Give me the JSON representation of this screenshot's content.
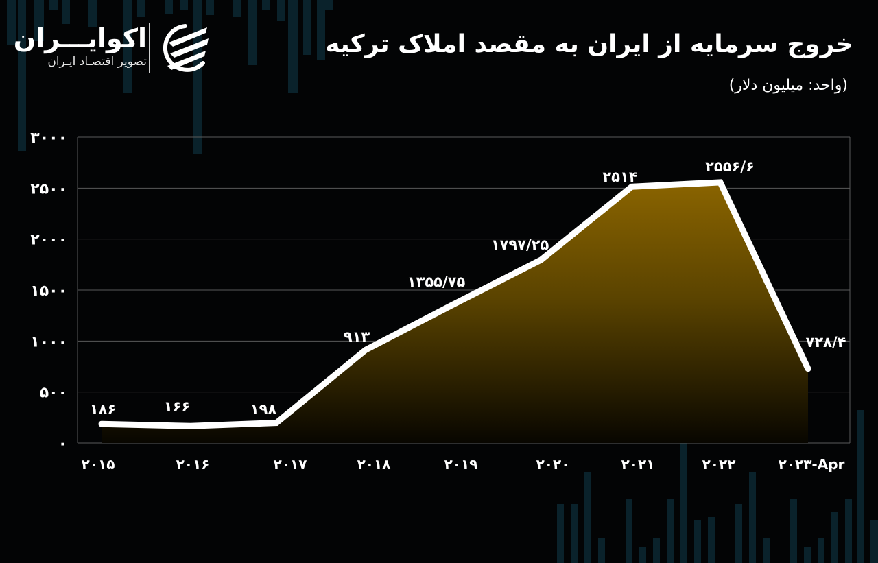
{
  "header": {
    "title": "خروج سرمایه از ایران به مقصد املاک ترکیه",
    "subtitle": "(واحد: میلیون دلار)"
  },
  "brand": {
    "name": "اکوایـــران",
    "tagline": "تصویر اقتصـاد ایـران",
    "icon": "ecoiran-logo-icon"
  },
  "colors": {
    "background": "#030405",
    "line": "#ffffff",
    "fill_top": "#8a6400",
    "fill_bottom": "#0a0800",
    "grid": "#5a5a5a",
    "decor_bars": "#0b2630"
  },
  "chart_data": {
    "type": "area",
    "title": "خروج سرمایه از ایران به مقصد املاک ترکیه",
    "subtitle": "(واحد: میلیون دلار)",
    "xlabel": "",
    "ylabel": "",
    "categories": [
      "2015",
      "2016",
      "2017",
      "2018",
      "2019",
      "2020",
      "2021",
      "2022",
      "2023-Apr"
    ],
    "category_labels": [
      "۲۰۱۵",
      "۲۰۱۶",
      "۲۰۱۷",
      "۲۰۱۸",
      "۲۰۱۹",
      "۲۰۲۰",
      "۲۰۲۱",
      "۲۰۲۲",
      "۲۰۲۳-Apr"
    ],
    "values": [
      186,
      166,
      198,
      913,
      1355.75,
      1797.25,
      2514,
      2556.6,
      728.4
    ],
    "value_labels": [
      "۱۸۶",
      "۱۶۶",
      "۱۹۸",
      "۹۱۳",
      "۱۳۵۵/۷۵",
      "۱۷۹۷/۲۵",
      "۲۵۱۴",
      "۲۵۵۶/۶",
      "۷۲۸/۴"
    ],
    "ylim": [
      0,
      3000
    ],
    "yticks": [
      0,
      500,
      1000,
      1500,
      2000,
      2500,
      3000
    ],
    "ytick_labels": [
      "۰",
      "۵۰۰",
      "۱۰۰۰",
      "۱۵۰۰",
      "۲۰۰۰",
      "۲۵۰۰",
      "۳۰۰۰"
    ],
    "grid": true,
    "legend": "none"
  }
}
